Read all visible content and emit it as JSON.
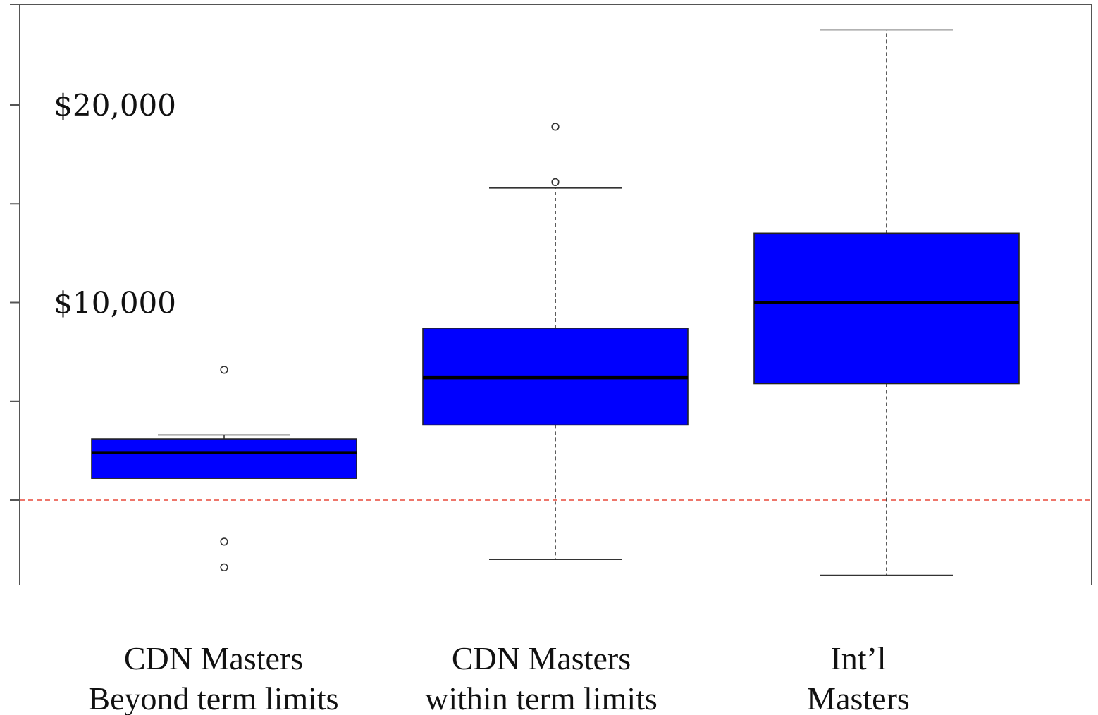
{
  "chart_data": {
    "type": "boxplot",
    "y_tick_labels": [
      {
        "value": 20000,
        "label": "$20,000"
      },
      {
        "value": 10000,
        "label": "$10,000"
      }
    ],
    "y_ticks": [
      20000,
      15000,
      10000,
      5000,
      0
    ],
    "ylim": [
      -4300,
      25300
    ],
    "reference_line": {
      "value": 0,
      "color": "#e8483a",
      "style": "dashed"
    },
    "box_color": "#0000ff",
    "categories": [
      {
        "lines": [
          "CDN Masters",
          "Beyond term limits"
        ]
      },
      {
        "lines": [
          "CDN Masters",
          "within term limits"
        ]
      },
      {
        "lines": [
          "Int’l",
          "Masters"
        ]
      }
    ],
    "boxes": [
      {
        "whisker_low": 1100,
        "q1": 1100,
        "median": 2400,
        "q3": 3100,
        "whisker_high": 3300,
        "outliers": [
          6600,
          -2100,
          -3400
        ]
      },
      {
        "whisker_low": -3000,
        "q1": 3800,
        "median": 6200,
        "q3": 8700,
        "whisker_high": 15800,
        "outliers": [
          18900,
          16100
        ]
      },
      {
        "whisker_low": -3800,
        "q1": 5900,
        "median": 10000,
        "q3": 13500,
        "whisker_high": 23800,
        "outliers": []
      }
    ]
  }
}
